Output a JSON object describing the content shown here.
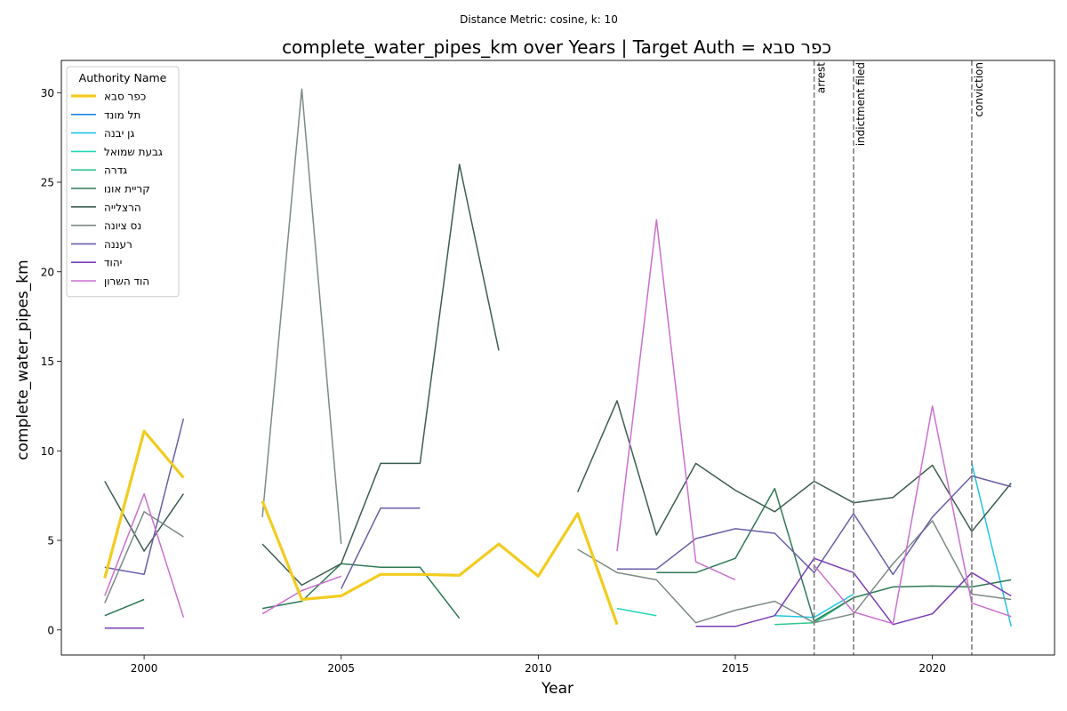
{
  "chart_data": {
    "type": "line",
    "suptitle": "Distance Metric: cosine, k: 10",
    "title": "complete_water_pipes_km over Years | Target Auth = כפר סבא",
    "xlabel": "Year",
    "ylabel": "complete_water_pipes_km",
    "xlim": [
      1997.9,
      2023.1
    ],
    "ylim": [
      -1.4,
      31.8
    ],
    "xticks": [
      2000,
      2005,
      2010,
      2015,
      2020
    ],
    "yticks": [
      0,
      5,
      10,
      15,
      20,
      25,
      30
    ],
    "legend": {
      "title": "Authority Name",
      "placement": "top-left"
    },
    "events": [
      {
        "x": 2017,
        "label": "arrest"
      },
      {
        "x": 2018,
        "label": "indictment filed"
      },
      {
        "x": 2021,
        "label": "conviction"
      }
    ],
    "series": [
      {
        "name": "כפר סבא",
        "color": "#f2cc1e",
        "width": 3.2,
        "target": true,
        "points": [
          [
            1999,
            2.9
          ],
          [
            2000,
            11.1
          ],
          [
            2001,
            8.5
          ],
          [
            2002,
            null
          ],
          [
            2003,
            7.2
          ],
          [
            2004,
            1.7
          ],
          [
            2005,
            1.9
          ],
          [
            2006,
            3.1
          ],
          [
            2007,
            3.1
          ],
          [
            2008,
            3.05
          ],
          [
            2009,
            4.8
          ],
          [
            2010,
            3.0
          ],
          [
            2011,
            6.5
          ],
          [
            2012,
            0.3
          ]
        ]
      },
      {
        "name": "תל מונד",
        "color": "#1e88e5",
        "width": 1.5,
        "points": []
      },
      {
        "name": "גן יבנה",
        "color": "#22c4e8",
        "width": 1.5,
        "points": [
          [
            2016,
            0.8
          ],
          [
            2017,
            0.7
          ],
          [
            2018,
            2.0
          ],
          [
            2019,
            null
          ],
          [
            2020,
            null
          ],
          [
            2021,
            9.3
          ],
          [
            2022,
            0.2
          ]
        ]
      },
      {
        "name": "גבעת שמואל",
        "color": "#1fd8b8",
        "width": 1.5,
        "points": [
          [
            2012,
            1.2
          ],
          [
            2013,
            0.8
          ]
        ]
      },
      {
        "name": "גדרה",
        "color": "#30c890",
        "width": 1.5,
        "points": [
          [
            2016,
            0.3
          ],
          [
            2017,
            0.4
          ],
          [
            2018,
            1.8
          ]
        ]
      },
      {
        "name": "קריית אונו",
        "color": "#2e7a56",
        "width": 1.5,
        "points": [
          [
            1999,
            0.8
          ],
          [
            2000,
            1.7
          ],
          [
            2001,
            null
          ],
          [
            2002,
            null
          ],
          [
            2003,
            1.2
          ],
          [
            2004,
            1.6
          ],
          [
            2005,
            3.7
          ],
          [
            2006,
            3.5
          ],
          [
            2007,
            3.5
          ],
          [
            2008,
            0.65
          ],
          [
            2009,
            null
          ],
          [
            2010,
            null
          ],
          [
            2011,
            null
          ],
          [
            2012,
            null
          ],
          [
            2013,
            3.2
          ],
          [
            2014,
            3.2
          ],
          [
            2015,
            4.0
          ],
          [
            2016,
            7.9
          ],
          [
            2017,
            0.5
          ],
          [
            2018,
            1.8
          ],
          [
            2019,
            2.4
          ],
          [
            2020,
            2.45
          ],
          [
            2021,
            2.4
          ],
          [
            2022,
            2.8
          ]
        ]
      },
      {
        "name": "הרצלייה",
        "color": "#3d5e50",
        "width": 1.5,
        "points": [
          [
            1999,
            8.3
          ],
          [
            2000,
            4.4
          ],
          [
            2001,
            7.6
          ],
          [
            2002,
            null
          ],
          [
            2003,
            4.8
          ],
          [
            2004,
            2.5
          ],
          [
            2005,
            3.7
          ],
          [
            2006,
            9.3
          ],
          [
            2007,
            9.3
          ],
          [
            2008,
            26.0
          ],
          [
            2009,
            15.6
          ],
          [
            2010,
            null
          ],
          [
            2011,
            7.7
          ],
          [
            2012,
            12.8
          ],
          [
            2013,
            5.3
          ],
          [
            2014,
            9.3
          ],
          [
            2015,
            7.8
          ],
          [
            2016,
            6.6
          ],
          [
            2017,
            8.3
          ],
          [
            2018,
            7.1
          ],
          [
            2019,
            7.4
          ],
          [
            2020,
            9.2
          ],
          [
            2021,
            5.5
          ],
          [
            2022,
            8.2
          ]
        ]
      },
      {
        "name": "נס ציונה",
        "color": "#7d8a85",
        "width": 1.5,
        "points": [
          [
            1999,
            1.5
          ],
          [
            2000,
            6.6
          ],
          [
            2001,
            5.2
          ],
          [
            2002,
            null
          ],
          [
            2003,
            6.3
          ],
          [
            2004,
            30.2
          ],
          [
            2005,
            4.8
          ],
          [
            2006,
            null
          ],
          [
            2007,
            null
          ],
          [
            2008,
            null
          ],
          [
            2009,
            null
          ],
          [
            2010,
            null
          ],
          [
            2011,
            4.5
          ],
          [
            2012,
            3.2
          ],
          [
            2013,
            2.8
          ],
          [
            2014,
            0.4
          ],
          [
            2015,
            1.1
          ],
          [
            2016,
            1.6
          ],
          [
            2017,
            0.4
          ],
          [
            2018,
            0.9
          ],
          [
            2019,
            3.7
          ],
          [
            2020,
            6.1
          ],
          [
            2021,
            2.0
          ],
          [
            2022,
            1.7
          ]
        ]
      },
      {
        "name": "רעננה",
        "color": "#6a5fa8",
        "width": 1.5,
        "points": [
          [
            1999,
            3.5
          ],
          [
            2000,
            3.1
          ],
          [
            2001,
            11.8
          ],
          [
            2002,
            null
          ],
          [
            2003,
            null
          ],
          [
            2004,
            null
          ],
          [
            2005,
            2.3
          ],
          [
            2006,
            6.8
          ],
          [
            2007,
            6.8
          ],
          [
            2008,
            null
          ],
          [
            2009,
            null
          ],
          [
            2010,
            null
          ],
          [
            2011,
            null
          ],
          [
            2012,
            3.4
          ],
          [
            2013,
            3.4
          ],
          [
            2014,
            5.1
          ],
          [
            2015,
            5.65
          ],
          [
            2016,
            5.4
          ],
          [
            2017,
            3.2
          ],
          [
            2018,
            6.5
          ],
          [
            2019,
            3.1
          ],
          [
            2020,
            6.3
          ],
          [
            2021,
            8.6
          ],
          [
            2022,
            8.0
          ]
        ]
      },
      {
        "name": "יהוד",
        "color": "#7a3db8",
        "width": 1.5,
        "points": [
          [
            1999,
            0.1
          ],
          [
            2000,
            0.1
          ],
          [
            2001,
            null
          ],
          [
            2002,
            null
          ],
          [
            2003,
            null
          ],
          [
            2004,
            null
          ],
          [
            2005,
            null
          ],
          [
            2006,
            null
          ],
          [
            2007,
            null
          ],
          [
            2008,
            null
          ],
          [
            2009,
            null
          ],
          [
            2010,
            null
          ],
          [
            2011,
            null
          ],
          [
            2012,
            null
          ],
          [
            2013,
            null
          ],
          [
            2014,
            0.2
          ],
          [
            2015,
            0.2
          ],
          [
            2016,
            0.8
          ],
          [
            2017,
            4.0
          ],
          [
            2018,
            3.2
          ],
          [
            2019,
            0.3
          ],
          [
            2020,
            0.9
          ],
          [
            2021,
            3.2
          ],
          [
            2022,
            1.9
          ]
        ]
      },
      {
        "name": "הוד השרון",
        "color": "#cc6fd0",
        "width": 1.5,
        "points": [
          [
            1999,
            1.9
          ],
          [
            2000,
            7.6
          ],
          [
            2001,
            0.7
          ],
          [
            2002,
            null
          ],
          [
            2003,
            0.9
          ],
          [
            2004,
            2.2
          ],
          [
            2005,
            3.0
          ],
          [
            2006,
            null
          ],
          [
            2007,
            null
          ],
          [
            2008,
            null
          ],
          [
            2009,
            null
          ],
          [
            2010,
            null
          ],
          [
            2011,
            null
          ],
          [
            2012,
            4.4
          ],
          [
            2013,
            22.9
          ],
          [
            2014,
            3.8
          ],
          [
            2015,
            2.8
          ],
          [
            2016,
            null
          ],
          [
            2017,
            3.6
          ],
          [
            2018,
            1.0
          ],
          [
            2019,
            0.35
          ],
          [
            2020,
            12.5
          ],
          [
            2021,
            1.5
          ],
          [
            2022,
            0.75
          ]
        ]
      }
    ]
  }
}
